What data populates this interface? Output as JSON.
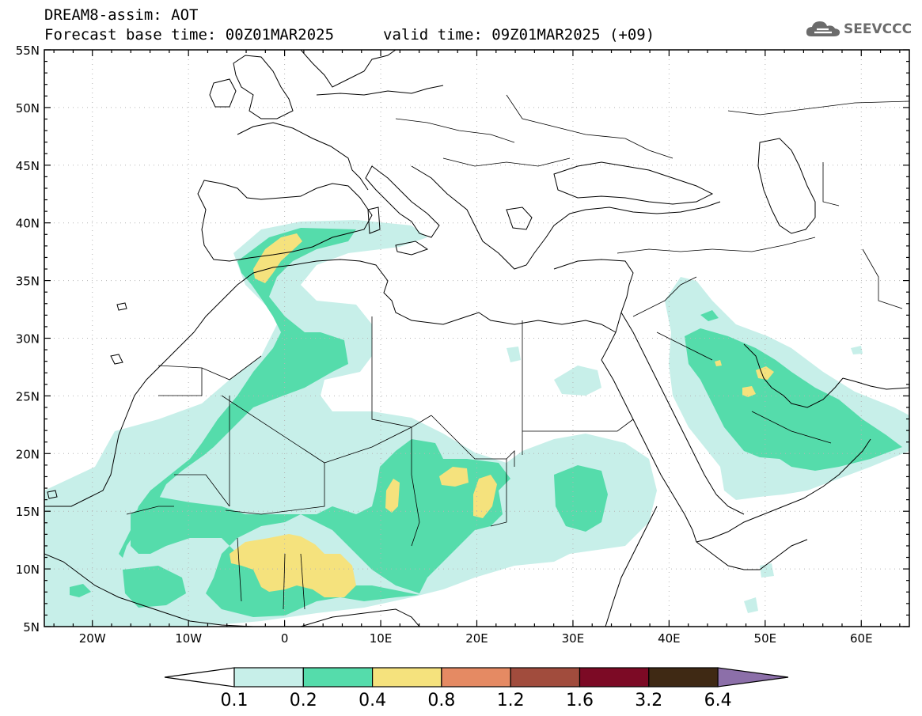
{
  "header": {
    "title_line1": "DREAM8-assim: AOT",
    "title_line2": "Forecast base time: 00Z01MAR2025",
    "valid_time": "valid time: 09Z01MAR2025 (+09)",
    "logo_text": "SEEVCCC"
  },
  "map": {
    "lat_labels": [
      "55N",
      "50N",
      "45N",
      "40N",
      "35N",
      "30N",
      "25N",
      "20N",
      "15N",
      "10N",
      "5N"
    ],
    "lon_labels": [
      "20W",
      "10W",
      "0",
      "10E",
      "20E",
      "30E",
      "40E",
      "50E",
      "60E"
    ],
    "lon_range": [
      -25,
      65
    ],
    "lat_range": [
      5,
      55
    ]
  },
  "colorbar": {
    "labels": [
      "0.1",
      "0.2",
      "0.4",
      "0.8",
      "1.2",
      "1.6",
      "3.2",
      "6.4"
    ],
    "colors": [
      "#ffffff",
      "#c7efe9",
      "#55dcab",
      "#f5e27d",
      "#e58a63",
      "#a14c3d",
      "#7c0a25",
      "#3f2914",
      "#8c6fa9"
    ]
  },
  "colors": {
    "level1": "#c7efe9",
    "level2": "#55dcab",
    "level3": "#f5e27d",
    "border": "#000000"
  }
}
